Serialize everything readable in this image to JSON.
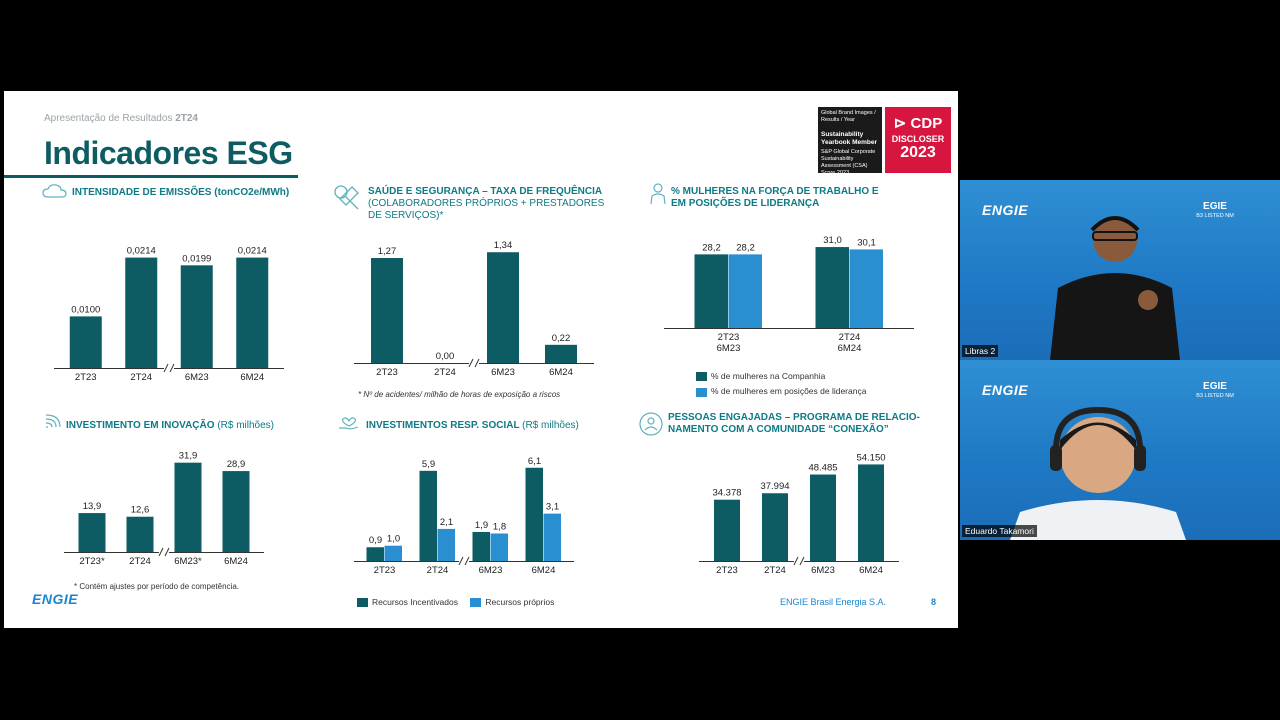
{
  "slide": {
    "breadcrumb_prefix": "Apresentação de Resultados",
    "breadcrumb_period": "2T24",
    "title": "Indicadores ESG",
    "badge_sustainability_small": "Global Brand Images / Results / Year",
    "badge_sustainability_title": "Sustainability Yearbook Member",
    "badge_sustainability_sub": "S&P Global Corporate Sustainability Assessment (CSA) Score 2023",
    "badge_cdp_brand": "CDP",
    "badge_cdp_label": "DISCLOSER",
    "badge_cdp_year": "2023",
    "footer_company": "ENGIE Brasil Energia S.A.",
    "footer_page": "8",
    "logo_text": "ENGIE"
  },
  "sections": {
    "emissions": {
      "title": "INTENSIDADE DE EMISSÕES (tonCO2e/MWh)"
    },
    "safety": {
      "title": "SAÚDE E SEGURANÇA – TAXA DE FREQUÊNCIA",
      "subtitle": "(COLABORADORES PRÓPRIOS + PRESTADORES DE SERVIÇOS)*",
      "footnote": "* Nº de acidentes/ milhão de horas de exposição a riscos"
    },
    "women": {
      "title_line1": "% MULHERES NA FORÇA DE TRABALHO E",
      "title_line2": "EM POSIÇÕES DE LIDERANÇA"
    },
    "innovation": {
      "title": "INVESTIMENTO EM INOVAÇÃO",
      "unit": "(R$ milhões)",
      "footnote": "* Contém ajustes por período de competência."
    },
    "social": {
      "title": "INVESTIMENTOS RESP. SOCIAL",
      "unit": "(R$ milhões)"
    },
    "people": {
      "title_line1": "PESSOAS ENGAJADAS – PROGRAMA DE RELACIO-",
      "title_line2": "NAMENTO COM A COMUNIDADE “CONEXÃO”"
    }
  },
  "chart_data": [
    {
      "id": "emissions",
      "type": "bar",
      "categories": [
        "2T23",
        "2T24",
        "6M23",
        "6M24"
      ],
      "values": [
        0.01,
        0.0214,
        0.0199,
        0.0214
      ],
      "labels": [
        "0,0100",
        "0,0214",
        "0,0199",
        "0,0214"
      ],
      "ylim": [
        0,
        0.025
      ],
      "axis_break_after": 1
    },
    {
      "id": "safety",
      "type": "bar",
      "categories": [
        "2T23",
        "2T24",
        "6M23",
        "6M24"
      ],
      "values": [
        1.27,
        0.0,
        1.34,
        0.22
      ],
      "labels": [
        "1,27",
        "0,00",
        "1,34",
        "0,22"
      ],
      "ylim": [
        0,
        1.5
      ],
      "axis_break_after": 1
    },
    {
      "id": "women",
      "type": "bar",
      "categories": [
        "2T23\n6M23",
        "2T24\n6M24"
      ],
      "series": [
        {
          "name": "% de mulheres na Companhia",
          "values": [
            28.2,
            31.0
          ],
          "labels": [
            "28,2",
            "31,0"
          ]
        },
        {
          "name": "% de mulheres em posições de liderança",
          "values": [
            28.2,
            30.1
          ],
          "labels": [
            "28,2",
            "30,1"
          ]
        }
      ],
      "ylim": [
        0,
        36
      ]
    },
    {
      "id": "innovation",
      "type": "bar",
      "categories": [
        "2T23*",
        "2T24",
        "6M23*",
        "6M24"
      ],
      "values": [
        13.9,
        12.6,
        31.9,
        28.9
      ],
      "labels": [
        "13,9",
        "12,6",
        "31,9",
        "28,9"
      ],
      "ylim": [
        0,
        35
      ],
      "axis_break_after": 1
    },
    {
      "id": "social",
      "type": "bar",
      "categories": [
        "2T23",
        "2T24",
        "6M23",
        "6M24"
      ],
      "series": [
        {
          "name": "Recursos Incentivados",
          "values": [
            0.9,
            5.9,
            1.9,
            6.1
          ],
          "labels": [
            "0,9",
            "5,9",
            "1,9",
            "6,1"
          ]
        },
        {
          "name": "Recursos próprios",
          "values": [
            1.0,
            2.1,
            1.8,
            3.1
          ],
          "labels": [
            "1,0",
            "2,1",
            "1,8",
            "3,1"
          ]
        }
      ],
      "ylim": [
        0,
        7
      ],
      "axis_break_after": 1
    },
    {
      "id": "people",
      "type": "bar",
      "categories": [
        "2T23",
        "2T24",
        "6M23",
        "6M24"
      ],
      "values": [
        34378,
        37994,
        48485,
        54150
      ],
      "labels": [
        "34.378",
        "37.994",
        "48.485",
        "54.150"
      ],
      "ylim": [
        0,
        60000
      ],
      "axis_break_after": 1
    }
  ],
  "colors": {
    "primary_bar": "#0d5c63",
    "secondary_bar": "#2a8fd0",
    "title": "#0d5c63",
    "accent": "#0d7a85",
    "cdp_red": "#d6163e",
    "engie_blue": "#1a86d0"
  },
  "video_tiles": [
    {
      "logo": "ENGIE",
      "code": "EGIE",
      "sub": "B3 LISTED NM",
      "name": "Libras 2"
    },
    {
      "logo": "ENGIE",
      "code": "EGIE",
      "sub": "B3 LISTED NM",
      "name": "Eduardo Takamori"
    }
  ]
}
